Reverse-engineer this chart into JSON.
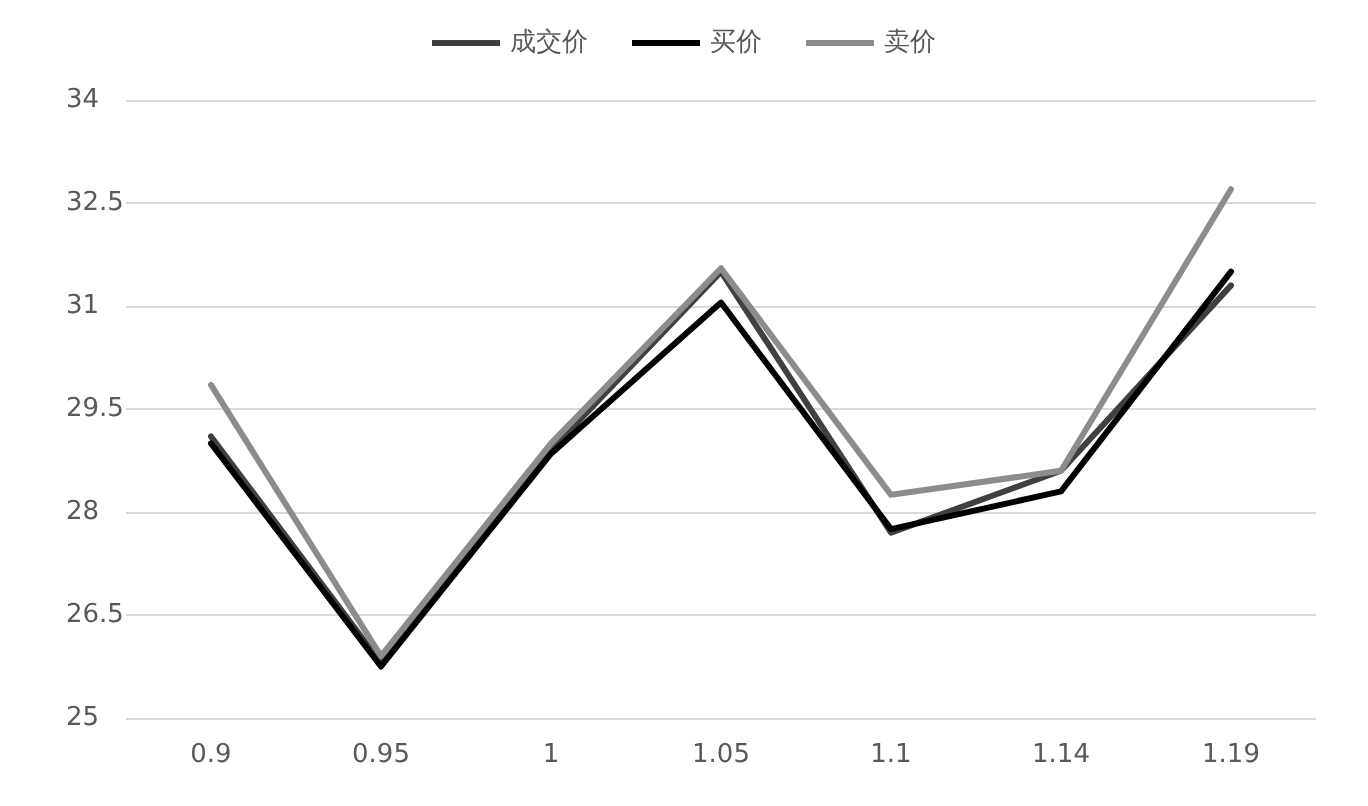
{
  "chart_data": {
    "type": "line",
    "categories": [
      "0.9",
      "0.95",
      "1",
      "1.05",
      "1.1",
      "1.14",
      "1.19"
    ],
    "series": [
      {
        "name": "成交价",
        "color": "#404040",
        "values": [
          29.1,
          25.8,
          28.9,
          31.5,
          27.7,
          28.6,
          31.3
        ]
      },
      {
        "name": "买价",
        "color": "#000000",
        "values": [
          29.0,
          25.75,
          28.85,
          31.05,
          27.75,
          28.3,
          31.5
        ]
      },
      {
        "name": "卖价",
        "color": "#8c8c8c",
        "values": [
          29.85,
          25.9,
          29.0,
          31.55,
          28.25,
          28.6,
          32.7
        ]
      }
    ],
    "ylim": [
      25,
      34
    ],
    "yticks": [
      25,
      26.5,
      28,
      29.5,
      31,
      32.5,
      34
    ],
    "grid": "y",
    "legend": "top",
    "marker": "none",
    "line_style": "solid"
  }
}
